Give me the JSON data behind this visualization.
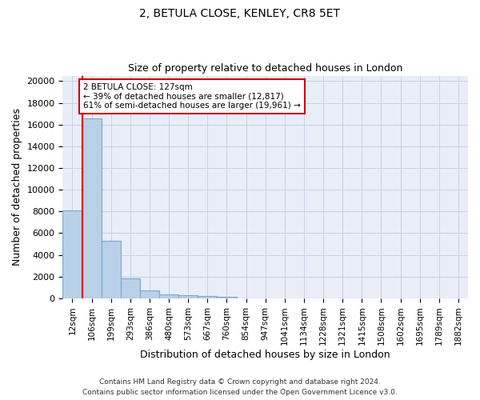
{
  "title": "2, BETULA CLOSE, KENLEY, CR8 5ET",
  "subtitle": "Size of property relative to detached houses in London",
  "xlabel": "Distribution of detached houses by size in London",
  "ylabel": "Number of detached properties",
  "categories": [
    "12sqm",
    "106sqm",
    "199sqm",
    "293sqm",
    "386sqm",
    "480sqm",
    "573sqm",
    "667sqm",
    "760sqm",
    "854sqm",
    "947sqm",
    "1041sqm",
    "1134sqm",
    "1228sqm",
    "1321sqm",
    "1415sqm",
    "1508sqm",
    "1602sqm",
    "1695sqm",
    "1789sqm",
    "1882sqm"
  ],
  "values": [
    8100,
    16600,
    5300,
    1850,
    750,
    350,
    280,
    220,
    160,
    0,
    0,
    0,
    0,
    0,
    0,
    0,
    0,
    0,
    0,
    0,
    0
  ],
  "bar_color": "#b8d0e8",
  "bar_edge_color": "#7aaac8",
  "annotation_text_line1": "2 BETULA CLOSE: 127sqm",
  "annotation_text_line2": "← 39% of detached houses are smaller (12,817)",
  "annotation_text_line3": "61% of semi-detached houses are larger (19,961) →",
  "vline_color": "#dd0000",
  "annotation_box_edge": "#cc0000",
  "ylim": [
    0,
    20500
  ],
  "yticks": [
    0,
    2000,
    4000,
    6000,
    8000,
    10000,
    12000,
    14000,
    16000,
    18000,
    20000
  ],
  "grid_color": "#c8d0e0",
  "bg_color": "#e8edf8",
  "footnote1": "Contains HM Land Registry data © Crown copyright and database right 2024.",
  "footnote2": "Contains public sector information licensed under the Open Government Licence v3.0."
}
